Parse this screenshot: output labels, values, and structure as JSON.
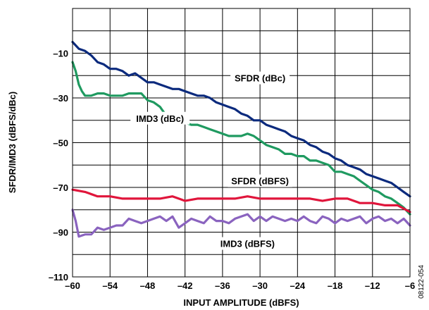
{
  "figure_id": "08122-054",
  "chart_data": {
    "type": "line",
    "xlabel": "INPUT AMPLITUDE (dBFS)",
    "ylabel": "SFDR/IMD3 (dBFS/dBc)",
    "xlim": [
      -60,
      -6
    ],
    "ylim": [
      -110,
      10
    ],
    "x_ticks": [
      -60,
      -54,
      -48,
      -42,
      -36,
      -30,
      -24,
      -18,
      -12,
      -6
    ],
    "x_tick_labels": [
      "–60",
      "–54",
      "–48",
      "–42",
      "–36",
      "–30",
      "–24",
      "–18",
      "–12",
      "–6"
    ],
    "y_ticks": [
      -10,
      -30,
      -50,
      -70,
      -90,
      -110
    ],
    "y_tick_labels": [
      "–10",
      "–30",
      "–50",
      "–70",
      "–90",
      "–110"
    ],
    "grid": true,
    "series": [
      {
        "name": "SFDR (dBc)",
        "color": "#0b2a7d",
        "x": [
          -60,
          -59,
          -58,
          -57,
          -56,
          -55,
          -54,
          -53,
          -52,
          -51,
          -50,
          -49,
          -48,
          -47,
          -46,
          -45,
          -44,
          -43,
          -42,
          -41,
          -40,
          -39,
          -38,
          -37,
          -36,
          -35,
          -34,
          -33,
          -32,
          -31,
          -30,
          -29,
          -28,
          -27,
          -26,
          -25,
          -24,
          -23,
          -22,
          -21,
          -20,
          -19,
          -18,
          -17,
          -16,
          -15,
          -14,
          -13,
          -12,
          -11,
          -10,
          -9,
          -8,
          -7,
          -6
        ],
        "y": [
          -5,
          -8,
          -9,
          -11,
          -14,
          -15,
          -17,
          -17,
          -18,
          -20,
          -19,
          -21,
          -23,
          -23,
          -24,
          -25,
          -26,
          -26,
          -27,
          -28,
          -29,
          -29,
          -30,
          -32,
          -33,
          -34,
          -35,
          -37,
          -38,
          -40,
          -40,
          -42,
          -43,
          -44,
          -45,
          -47,
          -48,
          -49,
          -51,
          -52,
          -54,
          -55,
          -57,
          -58,
          -60,
          -61,
          -62,
          -64,
          -65,
          -66,
          -67,
          -68,
          -70,
          -72,
          -74
        ]
      },
      {
        "name": "IMD3 (dBc)",
        "color": "#1f9a60",
        "x": [
          -60,
          -59.5,
          -59,
          -58.5,
          -58,
          -57,
          -56,
          -55,
          -54,
          -53,
          -52,
          -51,
          -50,
          -49,
          -48,
          -47,
          -46,
          -45,
          -44,
          -43,
          -42,
          -41,
          -40,
          -39,
          -38,
          -37,
          -36,
          -35,
          -34,
          -33,
          -32,
          -31,
          -30,
          -29,
          -28,
          -27,
          -26,
          -25,
          -24,
          -23,
          -22,
          -21,
          -20,
          -19,
          -18,
          -17,
          -16,
          -15,
          -14,
          -13,
          -12,
          -11,
          -10,
          -9,
          -8,
          -7,
          -6
        ],
        "y": [
          -14,
          -18,
          -24,
          -27,
          -29,
          -29,
          -28,
          -28,
          -29,
          -29,
          -29,
          -28,
          -28,
          -28,
          -31,
          -32,
          -34,
          -38,
          -39,
          -41,
          -41,
          -42,
          -42,
          -43,
          -44,
          -45,
          -46,
          -47,
          -47,
          -47,
          -46,
          -47,
          -49,
          -51,
          -52,
          -53,
          -55,
          -55,
          -56,
          -56,
          -58,
          -58,
          -59,
          -60,
          -63,
          -63,
          -64,
          -65,
          -67,
          -69,
          -71,
          -72,
          -74,
          -75,
          -77,
          -79,
          -82
        ]
      },
      {
        "name": "SFDR (dBFS)",
        "color": "#e0153b",
        "x": [
          -60,
          -58,
          -56,
          -54,
          -52,
          -50,
          -48,
          -46,
          -44,
          -42,
          -40,
          -38,
          -36,
          -34,
          -32,
          -30,
          -28,
          -26,
          -24,
          -22,
          -20,
          -18,
          -16,
          -14,
          -12,
          -10,
          -8,
          -6
        ],
        "y": [
          -71,
          -72,
          -74,
          -74,
          -75,
          -75,
          -75,
          -75,
          -74,
          -76,
          -75,
          -75,
          -75,
          -75,
          -74,
          -75,
          -75,
          -75,
          -75,
          -75,
          -76,
          -75,
          -75,
          -77,
          -77,
          -78,
          -78,
          -81
        ]
      },
      {
        "name": "IMD3 (dBFS)",
        "color": "#8a63bf",
        "x": [
          -60,
          -59.5,
          -59,
          -58,
          -57,
          -56,
          -55,
          -54,
          -53,
          -52,
          -51,
          -50,
          -49,
          -48,
          -47,
          -46,
          -45,
          -44,
          -43,
          -42,
          -41,
          -40,
          -39,
          -38,
          -37,
          -36,
          -35,
          -34,
          -33,
          -32,
          -31,
          -30,
          -29,
          -28,
          -27,
          -26,
          -25,
          -24,
          -23,
          -22,
          -21,
          -20,
          -19,
          -18,
          -17,
          -16,
          -15,
          -14,
          -13,
          -12,
          -11,
          -10,
          -9,
          -8,
          -7,
          -6
        ],
        "y": [
          -80,
          -85,
          -92,
          -91,
          -91,
          -88,
          -89,
          -88,
          -87,
          -87,
          -84,
          -85,
          -86,
          -85,
          -84,
          -83,
          -85,
          -83,
          -88,
          -86,
          -84,
          -85,
          -86,
          -83,
          -85,
          -85,
          -86,
          -84,
          -83,
          -82,
          -85,
          -83,
          -85,
          -83,
          -84,
          -85,
          -84,
          -85,
          -83,
          -85,
          -86,
          -83,
          -84,
          -86,
          -84,
          -85,
          -84,
          -83,
          -86,
          -84,
          -83,
          -85,
          -84,
          -86,
          -84,
          -87
        ]
      }
    ],
    "annotations": [
      {
        "text": "SFDR (dBc)",
        "x": -30,
        "y": -22
      },
      {
        "text": "IMD3 (dBc)",
        "x": -46,
        "y": -40
      },
      {
        "text": "SFDR (dBFS)",
        "x": -30,
        "y": -68
      },
      {
        "text": "IMD3 (dBFS)",
        "x": -32,
        "y": -96
      }
    ]
  }
}
